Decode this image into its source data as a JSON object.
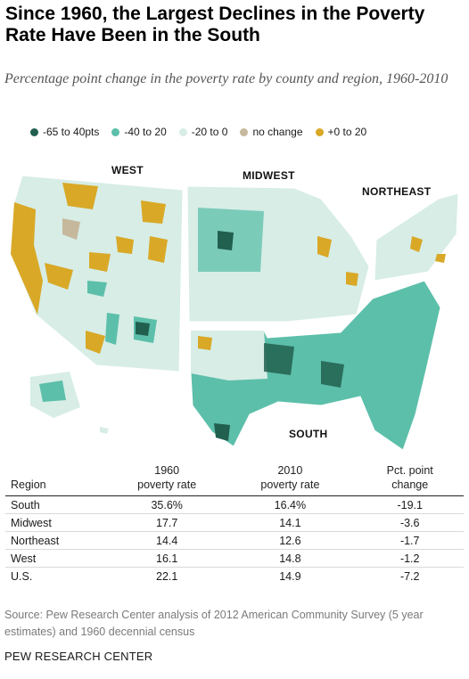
{
  "title": "Since 1960, the Largest Declines in the Poverty Rate Have Been in the South",
  "subtitle": "Percentage point change in the poverty rate by county and region, 1960-2010",
  "legend": [
    {
      "label": "-65 to 40pts",
      "color": "#215f4f"
    },
    {
      "label": "-40 to 20",
      "color": "#5cbfaa"
    },
    {
      "label": "-20 to 0",
      "color": "#d7ede6"
    },
    {
      "label": "no change",
      "color": "#c6b89c"
    },
    {
      "label": "+0 to 20",
      "color": "#d9a826"
    }
  ],
  "map": {
    "region_labels": {
      "west": "WEST",
      "midwest": "MIDWEST",
      "northeast": "NORTHEAST",
      "south": "SOUTH"
    }
  },
  "chart_data": {
    "type": "table",
    "columns": [
      "Region",
      "1960 poverty rate",
      "2010 poverty rate",
      "Pct. point change"
    ],
    "headers": {
      "region": "Region",
      "rate1960_l1": "1960",
      "rate1960_l2": "poverty rate",
      "rate2010_l1": "2010",
      "rate2010_l2": "poverty rate",
      "change_l1": "Pct. point",
      "change_l2": "change"
    },
    "rows": [
      {
        "region": "South",
        "rate1960": "35.6%",
        "rate2010": "16.4%",
        "change": "-19.1"
      },
      {
        "region": "Midwest",
        "rate1960": "17.7",
        "rate2010": "14.1",
        "change": "-3.6"
      },
      {
        "region": "Northeast",
        "rate1960": "14.4",
        "rate2010": "12.6",
        "change": "-1.7"
      },
      {
        "region": "West",
        "rate1960": "16.1",
        "rate2010": "14.8",
        "change": "-1.2"
      },
      {
        "region": "U.S.",
        "rate1960": "22.1",
        "rate2010": "14.9",
        "change": "-7.2"
      }
    ]
  },
  "source": "Source: Pew Research Center analysis of 2012 American Community Survey (5 year estimates) and 1960 decennial census",
  "footer": "PEW RESEARCH CENTER"
}
